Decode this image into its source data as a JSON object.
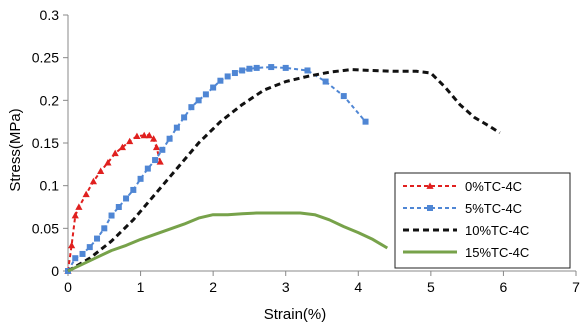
{
  "chart_data": {
    "type": "line",
    "title": "",
    "xlabel": "Strain(%)",
    "ylabel": "Stress(MPa)",
    "xlim": [
      0,
      7
    ],
    "ylim": [
      0,
      0.3
    ],
    "x_ticks": [
      0,
      1,
      2,
      3,
      4,
      5,
      6,
      7
    ],
    "x_tick_labels": [
      "0",
      "1",
      "2",
      "3",
      "4",
      "5",
      "6",
      "7"
    ],
    "y_ticks": [
      0,
      0.05,
      0.1,
      0.15,
      0.2,
      0.25,
      0.3
    ],
    "y_tick_labels": [
      "0",
      "0.05",
      "0.1",
      "0.15",
      "0.2",
      "0.25",
      "0.3"
    ],
    "grid": false,
    "legend_position": "bottom-right",
    "series": [
      {
        "name": "0%TC-4C",
        "color": "#e0201f",
        "line_style": "dashed",
        "marker": "triangle",
        "x": [
          0,
          0.05,
          0.1,
          0.15,
          0.25,
          0.35,
          0.45,
          0.55,
          0.65,
          0.75,
          0.85,
          0.95,
          1.05,
          1.12,
          1.18,
          1.22,
          1.27
        ],
        "y": [
          0,
          0.03,
          0.065,
          0.075,
          0.09,
          0.105,
          0.117,
          0.127,
          0.138,
          0.145,
          0.152,
          0.158,
          0.159,
          0.159,
          0.155,
          0.145,
          0.128
        ]
      },
      {
        "name": "5%TC-4C",
        "color": "#4f86d4",
        "line_style": "dashed",
        "marker": "square",
        "x": [
          0,
          0.1,
          0.2,
          0.3,
          0.4,
          0.5,
          0.6,
          0.7,
          0.8,
          0.9,
          1.0,
          1.1,
          1.2,
          1.3,
          1.4,
          1.5,
          1.6,
          1.7,
          1.8,
          1.9,
          2.0,
          2.1,
          2.2,
          2.3,
          2.4,
          2.5,
          2.6,
          2.8,
          3.0,
          3.3,
          3.55,
          3.8,
          4.1
        ],
        "y": [
          0,
          0.015,
          0.02,
          0.028,
          0.038,
          0.05,
          0.065,
          0.075,
          0.085,
          0.095,
          0.108,
          0.12,
          0.13,
          0.142,
          0.155,
          0.168,
          0.18,
          0.192,
          0.2,
          0.207,
          0.215,
          0.223,
          0.228,
          0.232,
          0.235,
          0.237,
          0.238,
          0.239,
          0.238,
          0.235,
          0.222,
          0.205,
          0.175
        ]
      },
      {
        "name": "10%TC-4C",
        "color": "#111111",
        "line_style": "dashed",
        "marker": "none",
        "x": [
          0,
          0.3,
          0.6,
          0.9,
          1.2,
          1.5,
          1.8,
          2.1,
          2.4,
          2.7,
          3.0,
          3.3,
          3.6,
          3.9,
          4.2,
          4.5,
          4.8,
          5.0,
          5.2,
          5.4,
          5.6,
          5.8,
          5.95
        ],
        "y": [
          0,
          0.015,
          0.035,
          0.06,
          0.09,
          0.12,
          0.15,
          0.175,
          0.195,
          0.212,
          0.222,
          0.228,
          0.233,
          0.236,
          0.235,
          0.234,
          0.234,
          0.232,
          0.215,
          0.195,
          0.18,
          0.17,
          0.162
        ]
      },
      {
        "name": "15%TC-4C",
        "color": "#77a24a",
        "line_style": "solid",
        "marker": "none",
        "x": [
          0,
          0.2,
          0.4,
          0.6,
          0.8,
          1.0,
          1.2,
          1.4,
          1.6,
          1.8,
          2.0,
          2.2,
          2.4,
          2.6,
          2.8,
          3.0,
          3.2,
          3.4,
          3.6,
          3.8,
          4.0,
          4.2,
          4.4
        ],
        "y": [
          0,
          0.008,
          0.016,
          0.024,
          0.03,
          0.037,
          0.043,
          0.049,
          0.055,
          0.062,
          0.066,
          0.066,
          0.067,
          0.068,
          0.068,
          0.068,
          0.068,
          0.066,
          0.06,
          0.052,
          0.045,
          0.037,
          0.027
        ]
      }
    ]
  }
}
